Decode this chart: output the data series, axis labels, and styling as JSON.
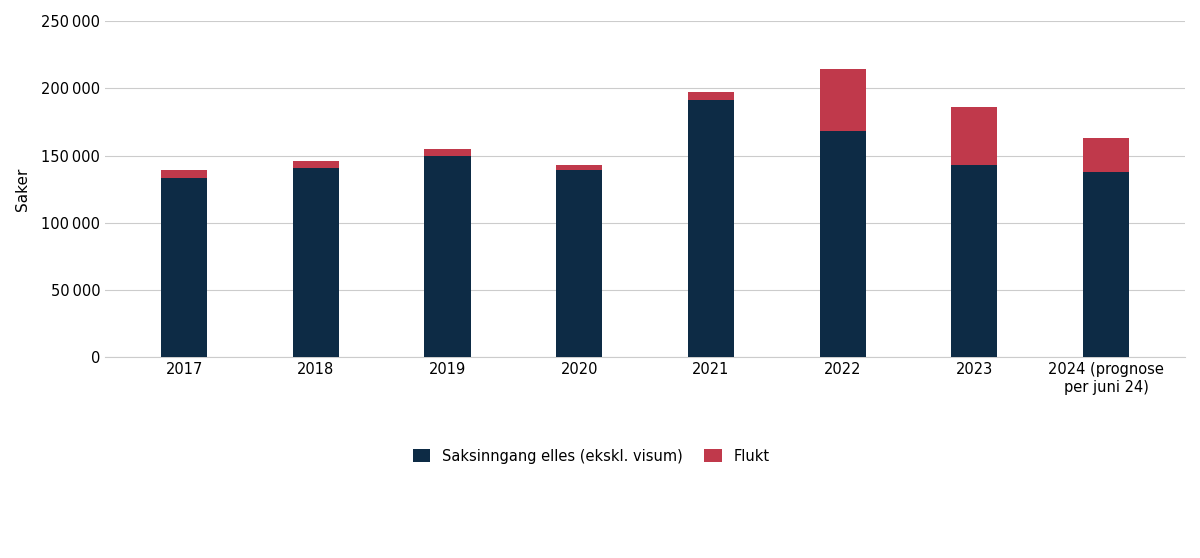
{
  "years": [
    "2017",
    "2018",
    "2019",
    "2020",
    "2021",
    "2022",
    "2023",
    "2024 (prognose\nper juni 24)"
  ],
  "base_values": [
    133000,
    141000,
    150000,
    139000,
    191000,
    168000,
    143000,
    138000
  ],
  "flukt_values": [
    6000,
    5000,
    5000,
    4000,
    6000,
    46000,
    43000,
    25000
  ],
  "bar_color_base": "#0d2b45",
  "bar_color_flukt": "#c0394b",
  "ylabel": "Saker",
  "ylim": [
    0,
    250000
  ],
  "yticks": [
    0,
    50000,
    100000,
    150000,
    200000,
    250000
  ],
  "legend_base": "Saksinngang elles (ekskl. visum)",
  "legend_flukt": "Flukt",
  "grid_color": "#cccccc",
  "bar_width": 0.35,
  "figsize": [
    12.0,
    5.58
  ],
  "dpi": 100
}
